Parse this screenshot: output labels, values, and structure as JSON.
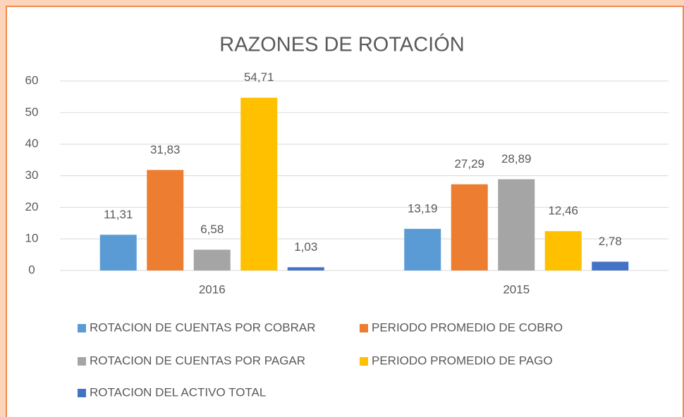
{
  "chart_data": {
    "type": "bar",
    "title": "RAZONES DE ROTACIÓN",
    "categories": [
      "2016",
      "2015"
    ],
    "series": [
      {
        "name": "ROTACION DE CUENTAS POR COBRAR",
        "color": "#5b9bd5",
        "values": [
          11.31,
          13.19
        ],
        "value_labels": [
          "11,31",
          "13,19"
        ]
      },
      {
        "name": "PERIODO PROMEDIO DE COBRO",
        "color": "#ed7d31",
        "values": [
          31.83,
          27.29
        ],
        "value_labels": [
          "31,83",
          "27,29"
        ]
      },
      {
        "name": "ROTACION DE CUENTAS POR PAGAR",
        "color": "#a5a5a5",
        "values": [
          6.58,
          28.89
        ],
        "value_labels": [
          "6,58",
          "28,89"
        ]
      },
      {
        "name": "PERIODO PROMEDIO DE PAGO",
        "color": "#ffc000",
        "values": [
          54.71,
          12.46
        ],
        "value_labels": [
          "54,71",
          "12,46"
        ]
      },
      {
        "name": "ROTACION DEL ACTIVO TOTAL",
        "color": "#4472c4",
        "values": [
          1.03,
          2.78
        ],
        "value_labels": [
          "1,03",
          "2,78"
        ]
      }
    ],
    "ylim": [
      0,
      60
    ],
    "yticks": [
      0,
      10,
      20,
      30,
      40,
      50,
      60
    ],
    "grid": true,
    "legend": "bottom"
  }
}
